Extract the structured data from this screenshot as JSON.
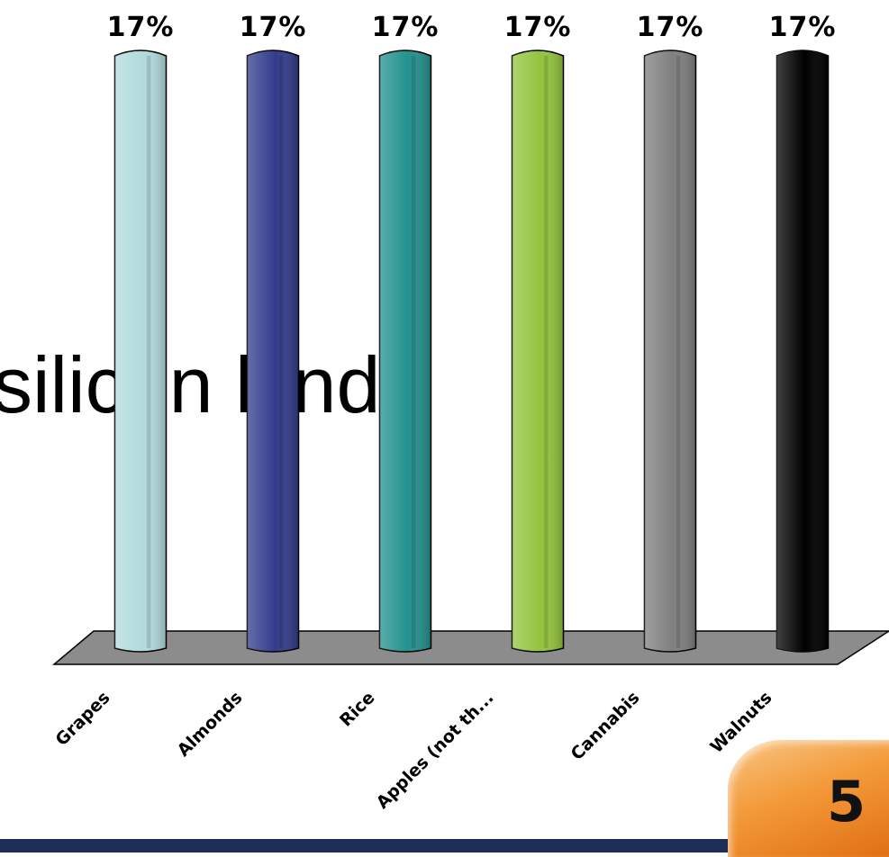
{
  "slide": {
    "background_text": "silicon kind)",
    "page_number": "5"
  },
  "chart_data": {
    "type": "bar",
    "categories": [
      "Grapes",
      "Almonds",
      "Rice",
      "Apples (not th...",
      "Cannabis",
      "Walnuts"
    ],
    "values": [
      17,
      17,
      17,
      17,
      17,
      17
    ],
    "value_labels": [
      "17%",
      "17%",
      "17%",
      "17%",
      "17%",
      "17%"
    ],
    "colors": [
      "#b2dadc",
      "#333c8c",
      "#23918e",
      "#94c43e",
      "#7f7f7f",
      "#000000"
    ],
    "ylim": [
      0,
      17
    ],
    "style": "3d-cylinder",
    "grid": false,
    "legend": "none"
  }
}
